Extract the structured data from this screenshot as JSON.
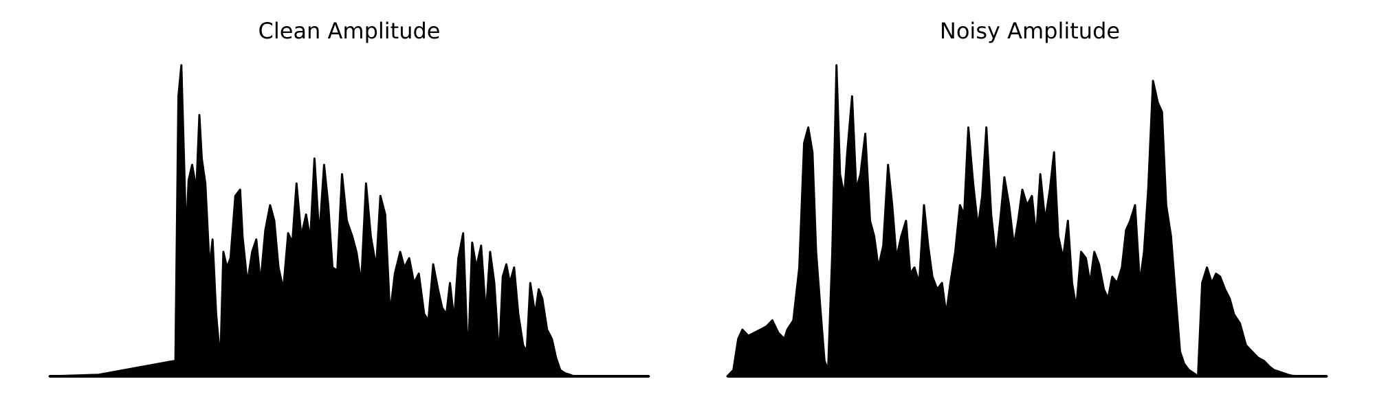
{
  "chart_data": [
    {
      "type": "area",
      "title": "Clean Amplitude",
      "xlabel": "",
      "ylabel": "",
      "axes_visible": false,
      "grid": false,
      "color": "#000000",
      "xlim": [
        0,
        1
      ],
      "ylim": [
        0,
        1
      ],
      "x": [
        0.0,
        0.082,
        0.21,
        0.215,
        0.22,
        0.228,
        0.232,
        0.238,
        0.245,
        0.25,
        0.254,
        0.26,
        0.267,
        0.272,
        0.278,
        0.285,
        0.29,
        0.296,
        0.302,
        0.31,
        0.318,
        0.322,
        0.33,
        0.338,
        0.345,
        0.352,
        0.36,
        0.368,
        0.375,
        0.382,
        0.39,
        0.398,
        0.405,
        0.412,
        0.42,
        0.428,
        0.435,
        0.442,
        0.45,
        0.458,
        0.465,
        0.472,
        0.48,
        0.488,
        0.496,
        0.505,
        0.512,
        0.52,
        0.528,
        0.536,
        0.545,
        0.552,
        0.56,
        0.568,
        0.576,
        0.585,
        0.592,
        0.6,
        0.608,
        0.616,
        0.625,
        0.632,
        0.64,
        0.648,
        0.655,
        0.662,
        0.668,
        0.675,
        0.682,
        0.69,
        0.698,
        0.705,
        0.712,
        0.72,
        0.728,
        0.735,
        0.742,
        0.75,
        0.756,
        0.762,
        0.768,
        0.775,
        0.782,
        0.79,
        0.796,
        0.802,
        0.81,
        0.816,
        0.822,
        0.83,
        0.838,
        0.845,
        0.852,
        0.86,
        0.868,
        0.875,
        0.9,
        1.0
      ],
      "y": [
        0.0,
        0.005,
        0.05,
        0.9,
        1.0,
        0.45,
        0.63,
        0.68,
        0.6,
        0.84,
        0.7,
        0.62,
        0.35,
        0.44,
        0.2,
        0.05,
        0.4,
        0.35,
        0.38,
        0.58,
        0.6,
        0.45,
        0.3,
        0.4,
        0.44,
        0.3,
        0.47,
        0.55,
        0.5,
        0.35,
        0.28,
        0.46,
        0.43,
        0.62,
        0.45,
        0.52,
        0.44,
        0.7,
        0.45,
        0.68,
        0.55,
        0.35,
        0.34,
        0.65,
        0.5,
        0.45,
        0.4,
        0.3,
        0.62,
        0.45,
        0.35,
        0.58,
        0.52,
        0.2,
        0.33,
        0.4,
        0.35,
        0.38,
        0.3,
        0.33,
        0.2,
        0.18,
        0.36,
        0.28,
        0.22,
        0.2,
        0.3,
        0.18,
        0.38,
        0.46,
        0.05,
        0.43,
        0.35,
        0.42,
        0.2,
        0.4,
        0.3,
        0.06,
        0.32,
        0.36,
        0.3,
        0.35,
        0.2,
        0.1,
        0.08,
        0.3,
        0.2,
        0.28,
        0.25,
        0.15,
        0.12,
        0.06,
        0.02,
        0.01,
        0.005,
        0.0,
        0.0,
        0.0
      ]
    },
    {
      "type": "area",
      "title": "Noisy Amplitude",
      "xlabel": "",
      "ylabel": "",
      "axes_visible": false,
      "grid": false,
      "color": "#000000",
      "xlim": [
        0,
        1
      ],
      "ylim": [
        0,
        1
      ],
      "x": [
        0.0,
        0.01,
        0.018,
        0.025,
        0.035,
        0.045,
        0.055,
        0.065,
        0.075,
        0.085,
        0.095,
        0.1,
        0.11,
        0.12,
        0.128,
        0.135,
        0.142,
        0.148,
        0.155,
        0.162,
        0.168,
        0.175,
        0.182,
        0.188,
        0.195,
        0.2,
        0.208,
        0.215,
        0.222,
        0.23,
        0.238,
        0.245,
        0.252,
        0.26,
        0.268,
        0.275,
        0.282,
        0.29,
        0.298,
        0.305,
        0.312,
        0.32,
        0.328,
        0.335,
        0.342,
        0.35,
        0.358,
        0.365,
        0.372,
        0.38,
        0.388,
        0.395,
        0.402,
        0.41,
        0.418,
        0.425,
        0.432,
        0.44,
        0.448,
        0.455,
        0.462,
        0.47,
        0.478,
        0.485,
        0.492,
        0.5,
        0.508,
        0.515,
        0.522,
        0.53,
        0.538,
        0.545,
        0.552,
        0.56,
        0.568,
        0.575,
        0.582,
        0.59,
        0.598,
        0.605,
        0.612,
        0.62,
        0.628,
        0.635,
        0.642,
        0.65,
        0.658,
        0.665,
        0.672,
        0.68,
        0.688,
        0.695,
        0.702,
        0.71,
        0.718,
        0.725,
        0.732,
        0.74,
        0.748,
        0.755,
        0.762,
        0.77,
        0.778,
        0.785,
        0.792,
        0.8,
        0.808,
        0.815,
        0.822,
        0.83,
        0.838,
        0.845,
        0.855,
        0.865,
        0.875,
        0.885,
        0.895,
        0.9,
        0.905,
        0.912,
        0.92,
        0.928,
        0.935,
        0.942,
        0.95,
        0.958,
        0.965,
        0.972,
        0.98,
        0.99,
        1.0
      ],
      "y": [
        0.0,
        0.02,
        0.12,
        0.15,
        0.13,
        0.14,
        0.15,
        0.16,
        0.18,
        0.14,
        0.12,
        0.15,
        0.18,
        0.35,
        0.75,
        0.8,
        0.72,
        0.4,
        0.22,
        0.05,
        0.02,
        0.4,
        1.0,
        0.65,
        0.58,
        0.72,
        0.9,
        0.6,
        0.65,
        0.78,
        0.5,
        0.45,
        0.35,
        0.42,
        0.68,
        0.55,
        0.38,
        0.45,
        0.5,
        0.33,
        0.35,
        0.3,
        0.55,
        0.42,
        0.32,
        0.28,
        0.3,
        0.2,
        0.3,
        0.4,
        0.55,
        0.52,
        0.8,
        0.62,
        0.48,
        0.58,
        0.8,
        0.52,
        0.38,
        0.5,
        0.64,
        0.55,
        0.42,
        0.5,
        0.6,
        0.55,
        0.58,
        0.45,
        0.65,
        0.5,
        0.6,
        0.72,
        0.45,
        0.38,
        0.5,
        0.3,
        0.22,
        0.4,
        0.38,
        0.3,
        0.4,
        0.36,
        0.28,
        0.25,
        0.32,
        0.3,
        0.35,
        0.47,
        0.5,
        0.55,
        0.3,
        0.4,
        0.6,
        0.95,
        0.88,
        0.85,
        0.55,
        0.45,
        0.25,
        0.08,
        0.04,
        0.02,
        0.01,
        0.0,
        0.3,
        0.35,
        0.3,
        0.33,
        0.32,
        0.28,
        0.25,
        0.2,
        0.17,
        0.1,
        0.08,
        0.06,
        0.05,
        0.04,
        0.03,
        0.02,
        0.015,
        0.01,
        0.005,
        0.002,
        0.0,
        0.0,
        0.0,
        0.0,
        0.0,
        0.0,
        0.0
      ]
    }
  ]
}
